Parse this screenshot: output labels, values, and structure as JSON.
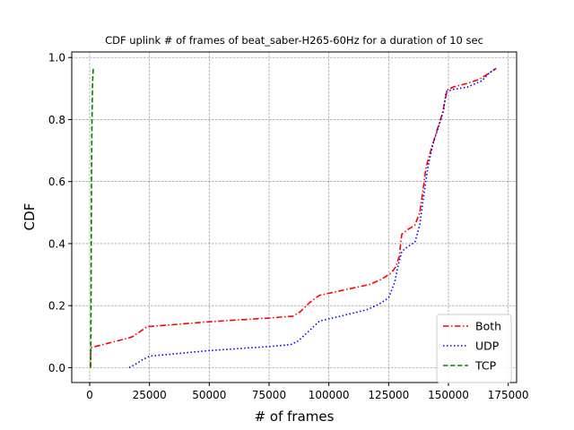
{
  "chart_data": {
    "type": "line",
    "title": "CDF uplink # of frames of beat_saber-H265-60Hz for a duration of 10 sec",
    "xlabel": "# of frames",
    "ylabel": "CDF",
    "xlim": [
      -7500,
      178500
    ],
    "ylim": [
      -0.048,
      1.018
    ],
    "xticks": [
      0,
      25000,
      50000,
      75000,
      100000,
      125000,
      150000,
      175000
    ],
    "yticks": [
      0.0,
      0.2,
      0.4,
      0.6,
      0.8,
      1.0
    ],
    "xtick_labels": [
      "0",
      "25000",
      "50000",
      "75000",
      "100000",
      "125000",
      "150000",
      "175000"
    ],
    "ytick_labels": [
      "0.0",
      "0.2",
      "0.4",
      "0.6",
      "0.8",
      "1.0"
    ],
    "grid": true,
    "legend_position": "lower-right",
    "series": [
      {
        "name": "Both",
        "color": "#ff0000",
        "style": "dashdot",
        "points": [
          [
            300,
            0.0
          ],
          [
            500,
            0.06
          ],
          [
            800,
            0.065
          ],
          [
            16000,
            0.095
          ],
          [
            18000,
            0.1
          ],
          [
            24000,
            0.132
          ],
          [
            50000,
            0.148
          ],
          [
            75000,
            0.16
          ],
          [
            85000,
            0.166
          ],
          [
            88000,
            0.18
          ],
          [
            92000,
            0.21
          ],
          [
            96000,
            0.233
          ],
          [
            106000,
            0.25
          ],
          [
            117000,
            0.268
          ],
          [
            122000,
            0.285
          ],
          [
            126000,
            0.305
          ],
          [
            128000,
            0.325
          ],
          [
            129500,
            0.36
          ],
          [
            130000,
            0.4
          ],
          [
            130500,
            0.43
          ],
          [
            133000,
            0.445
          ],
          [
            136000,
            0.46
          ],
          [
            138000,
            0.5
          ],
          [
            139500,
            0.58
          ],
          [
            140500,
            0.64
          ],
          [
            141500,
            0.67
          ],
          [
            143000,
            0.71
          ],
          [
            145000,
            0.76
          ],
          [
            147500,
            0.82
          ],
          [
            148500,
            0.86
          ],
          [
            149500,
            0.895
          ],
          [
            152000,
            0.905
          ],
          [
            158000,
            0.917
          ],
          [
            163000,
            0.93
          ],
          [
            167000,
            0.95
          ],
          [
            170000,
            0.965
          ]
        ]
      },
      {
        "name": "UDP",
        "color": "#0000ff",
        "style": "dotted",
        "points": [
          [
            16500,
            0.0
          ],
          [
            19000,
            0.01
          ],
          [
            22000,
            0.025
          ],
          [
            25000,
            0.037
          ],
          [
            50000,
            0.055
          ],
          [
            75000,
            0.068
          ],
          [
            84000,
            0.074
          ],
          [
            87000,
            0.085
          ],
          [
            92000,
            0.12
          ],
          [
            96000,
            0.15
          ],
          [
            106000,
            0.168
          ],
          [
            116000,
            0.187
          ],
          [
            121000,
            0.205
          ],
          [
            125000,
            0.225
          ],
          [
            127500,
            0.275
          ],
          [
            129000,
            0.33
          ],
          [
            130500,
            0.375
          ],
          [
            133000,
            0.39
          ],
          [
            136000,
            0.405
          ],
          [
            138000,
            0.46
          ],
          [
            140500,
            0.6
          ],
          [
            141500,
            0.65
          ],
          [
            143500,
            0.72
          ],
          [
            146000,
            0.78
          ],
          [
            148000,
            0.83
          ],
          [
            149000,
            0.89
          ],
          [
            152000,
            0.897
          ],
          [
            158000,
            0.905
          ],
          [
            164000,
            0.925
          ],
          [
            167000,
            0.95
          ],
          [
            170000,
            0.965
          ]
        ]
      },
      {
        "name": "TCP",
        "color": "#008000",
        "style": "dashed",
        "points": [
          [
            400,
            0.0
          ],
          [
            500,
            0.1
          ],
          [
            600,
            0.3
          ],
          [
            700,
            0.5
          ],
          [
            800,
            0.65
          ],
          [
            900,
            0.75
          ],
          [
            1050,
            0.85
          ],
          [
            1200,
            0.92
          ],
          [
            1500,
            0.965
          ]
        ]
      }
    ]
  }
}
